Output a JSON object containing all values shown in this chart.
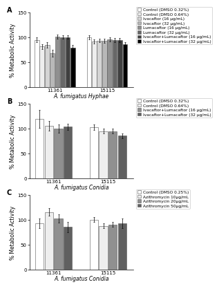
{
  "panel_A": {
    "label": "A",
    "xlabel": "A. fumigatus Hyphae",
    "ylabel": "% Metabolic Activity",
    "ylim": [
      0,
      150
    ],
    "yticks": [
      0,
      50,
      100,
      150
    ],
    "groups": [
      "11361",
      "15115"
    ],
    "bars_per_group": 8,
    "bar_colors": [
      "#ffffff",
      "#eeeeee",
      "#d4d4d4",
      "#b8b8b8",
      "#909090",
      "#686868",
      "#404040",
      "#000000"
    ],
    "bar_edgecolor": "#555555",
    "values": [
      [
        95,
        82,
        85,
        68,
        102,
        101,
        101,
        80
      ],
      [
        100,
        92,
        94,
        93,
        96,
        95,
        95,
        86
      ]
    ],
    "errors": [
      [
        5,
        5,
        6,
        7,
        4,
        4,
        4,
        5
      ],
      [
        4,
        4,
        4,
        4,
        4,
        4,
        4,
        4
      ]
    ],
    "legend_labels": [
      "Control (DMSO 0.32%)",
      "Control (DMSO 0.64%)",
      "Ivacaftor (16 μg/mL)",
      "Ivacaftor (32 μg/mL)",
      "Lumacaftor (16 μg/mL)",
      "Lumacaftor (32 μg/mL)",
      "Ivacaftor+Lumacaftor (16 μg/mL)",
      "Ivacaftor+Lumacaftor (32 μg/mL)"
    ],
    "legend_colors": [
      "#ffffff",
      "#eeeeee",
      "#d4d4d4",
      "#b8b8b8",
      "#909090",
      "#686868",
      "#404040",
      "#000000"
    ]
  },
  "panel_B": {
    "label": "B",
    "xlabel": "A. fumigatus Conidia",
    "ylabel": "% Metabolic Activity",
    "ylim": [
      0,
      150
    ],
    "yticks": [
      0,
      50,
      100,
      150
    ],
    "groups": [
      "11361",
      "15115"
    ],
    "bars_per_group": 4,
    "bar_colors": [
      "#ffffff",
      "#eeeeee",
      "#909090",
      "#606060"
    ],
    "bar_edgecolor": "#555555",
    "values": [
      [
        120,
        106,
        100,
        104
      ],
      [
        103,
        95,
        95,
        86
      ]
    ],
    "errors": [
      [
        18,
        10,
        8,
        6
      ],
      [
        5,
        5,
        5,
        5
      ]
    ],
    "legend_labels": [
      "Control (DMSO 0.32%)",
      "Control (DMSO 0.64%)",
      "Ivacaftor+Lumacaftor (16 μg/mL)",
      "Ivacaftor+Lumacaftor (32 μg/mL)"
    ],
    "legend_colors": [
      "#ffffff",
      "#eeeeee",
      "#909090",
      "#606060"
    ]
  },
  "panel_C": {
    "label": "C",
    "xlabel": "A. fumigatus Conidia",
    "ylabel": "% Metabolic Activity",
    "ylim": [
      0,
      150
    ],
    "yticks": [
      0,
      50,
      100,
      150
    ],
    "groups": [
      "11361",
      "15115"
    ],
    "bars_per_group": 4,
    "bar_colors": [
      "#ffffff",
      "#eeeeee",
      "#909090",
      "#606060"
    ],
    "bar_edgecolor": "#555555",
    "values": [
      [
        93,
        116,
        103,
        86
      ],
      [
        101,
        88,
        91,
        93
      ]
    ],
    "errors": [
      [
        10,
        8,
        8,
        10
      ],
      [
        5,
        5,
        5,
        10
      ]
    ],
    "legend_labels": [
      "Control (DMSO 0.25%)",
      "Azithromycin 10μg/mL",
      "Azithromycin 20μg/mL",
      "Azithromycin 50μg/mL"
    ],
    "legend_colors": [
      "#ffffff",
      "#eeeeee",
      "#909090",
      "#606060"
    ]
  },
  "background_color": "#ffffff",
  "tick_fontsize": 5,
  "label_fontsize": 5.5,
  "legend_fontsize": 4.2,
  "panel_label_fontsize": 7
}
